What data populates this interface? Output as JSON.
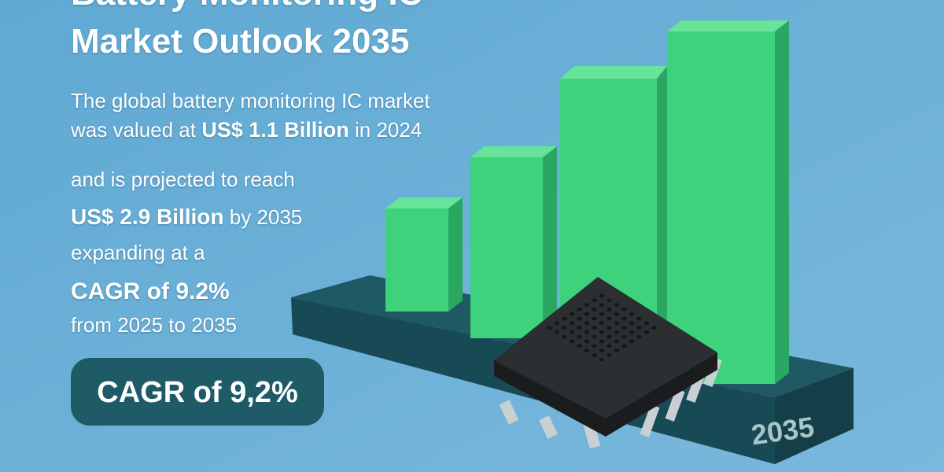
{
  "title": [
    "Battery Monitoring IC",
    "Market Outlook 2035"
  ],
  "body": {
    "line1": "The global battery monitoring IC market",
    "line2": [
      "was valued at",
      "US$ 1.1 Billion",
      "in 2024"
    ],
    "line3": "and is projected to reach",
    "line4": [
      "US$ 2.9 Billion",
      "by 2035"
    ],
    "line5": "expanding at a",
    "line6": "CAGR of 9.2%",
    "line7": "from 2025 to 2035"
  },
  "badge": "CAGR of 9,2%",
  "platform_label": "2035"
}
